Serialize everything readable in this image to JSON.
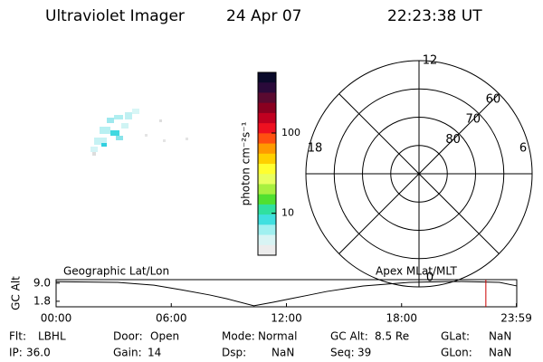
{
  "header": {
    "title": "Ultraviolet Imager",
    "date": "24 Apr 07",
    "time": "22:23:38 UT"
  },
  "colorbar": {
    "label": "photon cm⁻²s⁻¹",
    "scale": "log",
    "clim": [
      3,
      570
    ],
    "ticks": [
      10,
      100
    ],
    "colors": [
      "#0a0a2a",
      "#2a0a3a",
      "#5a0a30",
      "#8a0020",
      "#c00020",
      "#ee1020",
      "#ff5010",
      "#ff9a00",
      "#ffd000",
      "#ffff30",
      "#e8ff60",
      "#a8f040",
      "#50e030",
      "#30e0a0",
      "#40e0e0",
      "#a0f0f0",
      "#d8f4f4",
      "#ececec"
    ]
  },
  "polar": {
    "rlim": [
      90,
      50
    ],
    "rings": [
      60,
      70,
      80
    ],
    "mlt_ticks": [
      12,
      18,
      6,
      0
    ]
  },
  "chart_data": {
    "type": "line",
    "ylabel": "GC Alt",
    "annotations": [
      "Geographic Lat/Lon",
      "Apex MLat/MLT"
    ],
    "x": [
      0,
      3.2,
      5.1,
      6.5,
      8.0,
      8.9,
      10.3,
      11.3,
      12.2,
      13.2,
      14.1,
      16.0,
      18.4,
      20.8,
      23.1,
      24.0
    ],
    "series": [
      {
        "color": "#000000",
        "values": [
          9.6,
          9.3,
          8.2,
          6.4,
          4.3,
          2.8,
          0.0,
          1.4,
          2.8,
          4.3,
          5.7,
          7.9,
          9.3,
          9.7,
          9.3,
          7.9
        ]
      }
    ],
    "xlim": [
      0,
      24
    ],
    "xticks": [
      {
        "value": 0,
        "label": "00:00"
      },
      {
        "value": 6,
        "label": "06:00"
      },
      {
        "value": 12,
        "label": "12:00"
      },
      {
        "value": 18,
        "label": "18:00"
      },
      {
        "value": 23.98,
        "label": "23:59"
      }
    ],
    "ylim": [
      -0.4,
      10.4
    ],
    "yticks": [
      1.8,
      {
        "value": 9,
        "label": "9.0"
      }
    ],
    "marker": {
      "x": 22.39,
      "color": "#cc0000"
    }
  },
  "info": {
    "rows": [
      [
        {
          "label": "Flt:",
          "value": "LBHL"
        },
        {
          "label": "Door:",
          "value": "Open"
        },
        {
          "label": "Mode:",
          "value": "Normal"
        },
        {
          "label": "GC Alt:",
          "value": "8.5 Re"
        },
        {
          "label": "GLat:",
          "value": "NaN"
        }
      ],
      [
        {
          "label": "IP:",
          "value": "36.0"
        },
        {
          "label": "Gain:",
          "value": "14"
        },
        {
          "label": "Dsp:",
          "value": "NaN"
        },
        {
          "label": "Seq:",
          "value": "39"
        },
        {
          "label": "GLon:",
          "value": "NaN"
        }
      ]
    ]
  }
}
